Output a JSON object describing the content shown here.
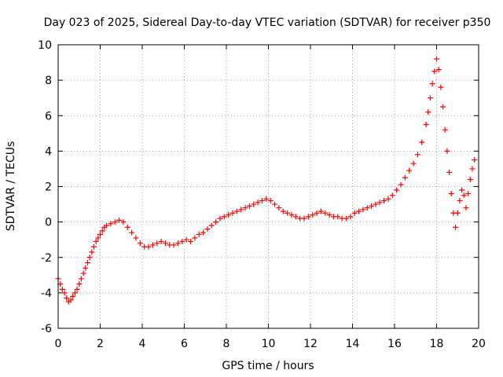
{
  "chart_data": {
    "type": "scatter",
    "title": "Day 023 of 2025, Sidereal Day-to-day VTEC variation (SDTVAR) for receiver p350",
    "xlabel": "GPS time / hours",
    "ylabel": "SDTVAR / TECUs",
    "xlim": [
      0,
      20
    ],
    "ylim": [
      -6,
      10
    ],
    "xticks": [
      "0",
      "2",
      "4",
      "6",
      "8",
      "10",
      "12",
      "14",
      "16",
      "18",
      "20"
    ],
    "yticks": [
      "-6",
      "-4",
      "-2",
      "0",
      "2",
      "4",
      "6",
      "8",
      "10"
    ],
    "grid": true,
    "marker": "+",
    "color": "#ff0000",
    "series": [
      {
        "name": "SDTVAR",
        "x": [
          0.0,
          0.1,
          0.2,
          0.3,
          0.4,
          0.5,
          0.6,
          0.7,
          0.8,
          0.9,
          1.0,
          1.1,
          1.2,
          1.3,
          1.4,
          1.5,
          1.6,
          1.7,
          1.8,
          1.9,
          2.0,
          2.1,
          2.2,
          2.3,
          2.5,
          2.7,
          2.9,
          3.1,
          3.3,
          3.5,
          3.7,
          3.9,
          4.1,
          4.3,
          4.5,
          4.7,
          4.9,
          5.1,
          5.3,
          5.5,
          5.7,
          5.9,
          6.1,
          6.3,
          6.5,
          6.7,
          6.9,
          7.1,
          7.3,
          7.5,
          7.7,
          7.9,
          8.1,
          8.3,
          8.5,
          8.7,
          8.9,
          9.1,
          9.3,
          9.5,
          9.7,
          9.9,
          10.1,
          10.3,
          10.5,
          10.7,
          10.9,
          11.1,
          11.3,
          11.5,
          11.7,
          11.9,
          12.1,
          12.3,
          12.5,
          12.7,
          12.9,
          13.1,
          13.3,
          13.5,
          13.7,
          13.9,
          14.1,
          14.3,
          14.5,
          14.7,
          14.9,
          15.1,
          15.3,
          15.5,
          15.7,
          15.9,
          16.1,
          16.3,
          16.5,
          16.7,
          16.9,
          17.1,
          17.3,
          17.5,
          17.6,
          17.7,
          17.8,
          17.9,
          18.0,
          18.1,
          18.2,
          18.3,
          18.4,
          18.5,
          18.6,
          18.7,
          18.8,
          18.9,
          19.0,
          19.1,
          19.2,
          19.3,
          19.4,
          19.5,
          19.6,
          19.7,
          19.8
        ],
        "y": [
          -3.2,
          -3.5,
          -3.8,
          -4.0,
          -4.3,
          -4.5,
          -4.4,
          -4.2,
          -4.0,
          -3.8,
          -3.5,
          -3.2,
          -2.9,
          -2.6,
          -2.3,
          -2.0,
          -1.7,
          -1.4,
          -1.1,
          -0.9,
          -0.7,
          -0.5,
          -0.3,
          -0.2,
          -0.1,
          0.0,
          0.1,
          0.0,
          -0.3,
          -0.6,
          -0.9,
          -1.2,
          -1.4,
          -1.4,
          -1.3,
          -1.2,
          -1.1,
          -1.2,
          -1.3,
          -1.3,
          -1.2,
          -1.1,
          -1.0,
          -1.1,
          -0.9,
          -0.7,
          -0.6,
          -0.4,
          -0.2,
          0.0,
          0.2,
          0.3,
          0.4,
          0.5,
          0.6,
          0.7,
          0.8,
          0.9,
          1.0,
          1.1,
          1.2,
          1.3,
          1.2,
          1.0,
          0.8,
          0.6,
          0.5,
          0.4,
          0.3,
          0.2,
          0.2,
          0.3,
          0.4,
          0.5,
          0.6,
          0.5,
          0.4,
          0.3,
          0.3,
          0.2,
          0.2,
          0.3,
          0.5,
          0.6,
          0.7,
          0.8,
          0.9,
          1.0,
          1.1,
          1.2,
          1.3,
          1.5,
          1.8,
          2.1,
          2.5,
          2.9,
          3.3,
          3.8,
          4.5,
          5.5,
          6.2,
          7.0,
          7.8,
          8.5,
          9.2,
          8.6,
          7.6,
          6.5,
          5.2,
          4.0,
          2.8,
          1.6,
          0.5,
          -0.3,
          0.5,
          1.2,
          1.8,
          1.5,
          0.8,
          1.6,
          2.4,
          3.0,
          3.5
        ]
      }
    ]
  }
}
